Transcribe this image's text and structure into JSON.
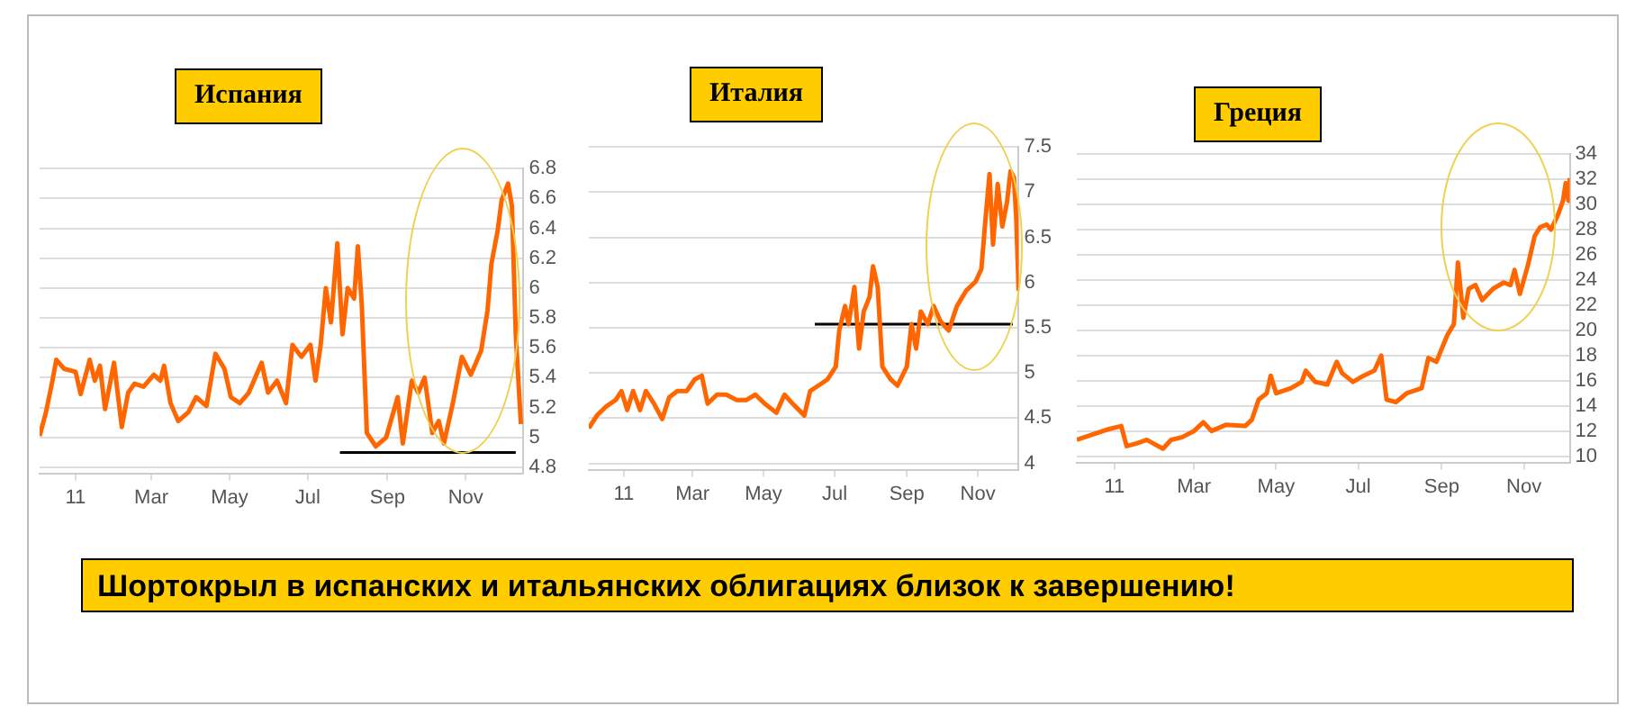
{
  "chart_data": [
    {
      "type": "line",
      "title": "Испания",
      "xlim": [
        "2010-12-04",
        "2011-12-16"
      ],
      "xticks": [
        {
          "value": "2011-01-01",
          "label": "11"
        },
        {
          "value": "2011-03-01",
          "label": "Mar"
        },
        {
          "value": "2011-05-01",
          "label": "May"
        },
        {
          "value": "2011-07-01",
          "label": "Jul"
        },
        {
          "value": "2011-09-01",
          "label": "Sep"
        },
        {
          "value": "2011-11-01",
          "label": "Nov"
        }
      ],
      "ylim": [
        4.76,
        6.8
      ],
      "yticks": [
        4.8,
        5,
        5.2,
        5.4,
        5.6,
        5.8,
        6,
        6.2,
        6.4,
        6.6,
        6.8
      ],
      "grid": "y",
      "series": [
        {
          "color": "#ff6600",
          "x": [
            "2010-12-04",
            "2010-12-09",
            "2010-12-14",
            "2010-12-17",
            "2010-12-23",
            "2011-01-01",
            "2011-01-05",
            "2011-01-12",
            "2011-01-16",
            "2011-01-20",
            "2011-01-24",
            "2011-01-31",
            "2011-02-06",
            "2011-02-11",
            "2011-02-16",
            "2011-02-23",
            "2011-03-03",
            "2011-03-08",
            "2011-03-11",
            "2011-03-16",
            "2011-03-22",
            "2011-03-30",
            "2011-04-05",
            "2011-04-13",
            "2011-04-20",
            "2011-04-27",
            "2011-05-02",
            "2011-05-09",
            "2011-05-16",
            "2011-05-26",
            "2011-05-31",
            "2011-06-07",
            "2011-06-14",
            "2011-06-19",
            "2011-06-26",
            "2011-07-03",
            "2011-07-07",
            "2011-07-11",
            "2011-07-15",
            "2011-07-19",
            "2011-07-24",
            "2011-07-28",
            "2011-08-01",
            "2011-08-06",
            "2011-08-09",
            "2011-08-12",
            "2011-08-16",
            "2011-08-23",
            "2011-08-31",
            "2011-09-09",
            "2011-09-13",
            "2011-09-20",
            "2011-09-25",
            "2011-09-30",
            "2011-10-06",
            "2011-10-11",
            "2011-10-15",
            "2011-10-22",
            "2011-10-29",
            "2011-11-05",
            "2011-11-13",
            "2011-11-18",
            "2011-11-21",
            "2011-11-26",
            "2011-11-29",
            "2011-12-04",
            "2011-12-07",
            "2011-12-10",
            "2011-12-14"
          ],
          "values": [
            5.01,
            5.17,
            5.38,
            5.52,
            5.46,
            5.44,
            5.29,
            5.52,
            5.38,
            5.48,
            5.19,
            5.5,
            5.07,
            5.3,
            5.36,
            5.34,
            5.42,
            5.38,
            5.48,
            5.23,
            5.11,
            5.17,
            5.27,
            5.21,
            5.56,
            5.46,
            5.27,
            5.23,
            5.3,
            5.5,
            5.3,
            5.38,
            5.23,
            5.62,
            5.54,
            5.62,
            5.38,
            5.62,
            6.0,
            5.77,
            6.3,
            5.69,
            6.0,
            5.93,
            6.28,
            5.89,
            5.03,
            4.94,
            5.0,
            5.27,
            4.96,
            5.38,
            5.3,
            5.4,
            5.03,
            5.11,
            4.96,
            5.23,
            5.54,
            5.42,
            5.58,
            5.85,
            6.16,
            6.39,
            6.59,
            6.7,
            6.55,
            5.69,
            5.09
          ]
        },
        {
          "type": "line",
          "color": "#000000",
          "x": [
            "2011-07-26",
            "2011-12-10"
          ],
          "values": [
            4.9,
            4.9
          ]
        }
      ]
    },
    {
      "type": "line",
      "title": "Италия",
      "xlim": [
        "2010-12-02",
        "2011-12-06"
      ],
      "xticks": [
        {
          "value": "2011-01-01",
          "label": "11"
        },
        {
          "value": "2011-03-01",
          "label": "Mar"
        },
        {
          "value": "2011-05-01",
          "label": "May"
        },
        {
          "value": "2011-07-01",
          "label": "Jul"
        },
        {
          "value": "2011-09-01",
          "label": "Sep"
        },
        {
          "value": "2011-11-01",
          "label": "Nov"
        }
      ],
      "ylim": [
        3.93,
        7.5
      ],
      "yticks": [
        4,
        4.5,
        5,
        5.5,
        6,
        6.5,
        7,
        7.5
      ],
      "grid": "y",
      "series": [
        {
          "color": "#ff6600",
          "x": [
            "2010-12-02",
            "2010-12-09",
            "2010-12-17",
            "2010-12-25",
            "2010-12-30",
            "2011-01-04",
            "2011-01-09",
            "2011-01-15",
            "2011-01-20",
            "2011-01-27",
            "2011-02-03",
            "2011-02-09",
            "2011-02-16",
            "2011-02-24",
            "2011-03-03",
            "2011-03-09",
            "2011-03-14",
            "2011-03-22",
            "2011-03-30",
            "2011-04-08",
            "2011-04-16",
            "2011-04-24",
            "2011-05-02",
            "2011-05-12",
            "2011-05-19",
            "2011-05-26",
            "2011-06-05",
            "2011-06-10",
            "2011-06-17",
            "2011-06-25",
            "2011-07-02",
            "2011-07-05",
            "2011-07-10",
            "2011-07-13",
            "2011-07-18",
            "2011-07-22",
            "2011-07-26",
            "2011-07-31",
            "2011-08-03",
            "2011-08-07",
            "2011-08-11",
            "2011-08-18",
            "2011-08-24",
            "2011-09-01",
            "2011-09-05",
            "2011-09-09",
            "2011-09-13",
            "2011-09-19",
            "2011-09-24",
            "2011-09-30",
            "2011-10-07",
            "2011-10-14",
            "2011-10-22",
            "2011-10-30",
            "2011-11-04",
            "2011-11-07",
            "2011-11-11",
            "2011-11-14",
            "2011-11-18",
            "2011-11-22",
            "2011-11-26",
            "2011-11-29",
            "2011-12-02",
            "2011-12-04",
            "2011-12-06"
          ],
          "values": [
            4.39,
            4.53,
            4.63,
            4.7,
            4.8,
            4.59,
            4.8,
            4.59,
            4.8,
            4.66,
            4.49,
            4.73,
            4.8,
            4.8,
            4.93,
            4.97,
            4.66,
            4.76,
            4.76,
            4.7,
            4.7,
            4.76,
            4.66,
            4.56,
            4.76,
            4.66,
            4.53,
            4.8,
            4.86,
            4.93,
            5.07,
            5.47,
            5.74,
            5.54,
            5.95,
            5.27,
            5.68,
            5.84,
            6.18,
            5.95,
            5.07,
            4.93,
            4.86,
            5.07,
            5.54,
            5.27,
            5.68,
            5.54,
            5.74,
            5.57,
            5.47,
            5.74,
            5.91,
            6.01,
            6.15,
            6.62,
            7.2,
            6.42,
            7.09,
            6.62,
            6.89,
            7.23,
            7.16,
            6.69,
            5.91
          ]
        },
        {
          "type": "line",
          "color": "#000000",
          "x": [
            "2011-06-14",
            "2011-12-01"
          ],
          "values": [
            5.54,
            5.54
          ]
        }
      ]
    },
    {
      "type": "line",
      "title": "Греция",
      "xlim": [
        "2010-12-04",
        "2011-12-05"
      ],
      "xticks": [
        {
          "value": "2011-01-01",
          "label": "11"
        },
        {
          "value": "2011-03-01",
          "label": "Mar"
        },
        {
          "value": "2011-05-01",
          "label": "May"
        },
        {
          "value": "2011-07-01",
          "label": "Jul"
        },
        {
          "value": "2011-09-01",
          "label": "Sep"
        },
        {
          "value": "2011-11-01",
          "label": "Nov"
        }
      ],
      "ylim": [
        9.5,
        34
      ],
      "yticks": [
        10,
        12,
        14,
        16,
        18,
        20,
        22,
        24,
        26,
        28,
        30,
        32,
        34
      ],
      "grid": "y",
      "series": [
        {
          "color": "#ff6600",
          "x": [
            "2010-12-04",
            "2010-12-15",
            "2010-12-26",
            "2011-01-06",
            "2011-01-10",
            "2011-01-17",
            "2011-01-25",
            "2011-01-30",
            "2011-02-06",
            "2011-02-12",
            "2011-02-20",
            "2011-03-01",
            "2011-03-08",
            "2011-03-14",
            "2011-03-25",
            "2011-04-08",
            "2011-04-13",
            "2011-04-18",
            "2011-04-24",
            "2011-04-27",
            "2011-05-01",
            "2011-05-12",
            "2011-05-20",
            "2011-05-23",
            "2011-05-30",
            "2011-06-08",
            "2011-06-15",
            "2011-06-19",
            "2011-06-27",
            "2011-07-05",
            "2011-07-13",
            "2011-07-18",
            "2011-07-22",
            "2011-07-29",
            "2011-08-06",
            "2011-08-17",
            "2011-08-22",
            "2011-08-28",
            "2011-09-05",
            "2011-09-10",
            "2011-09-13",
            "2011-09-17",
            "2011-09-21",
            "2011-09-26",
            "2011-10-01",
            "2011-10-09",
            "2011-10-17",
            "2011-10-22",
            "2011-10-25",
            "2011-10-29",
            "2011-11-04",
            "2011-11-09",
            "2011-11-13",
            "2011-11-18",
            "2011-11-21",
            "2011-11-26",
            "2011-11-30",
            "2011-12-02",
            "2011-12-04",
            "2011-12-05"
          ],
          "values": [
            11.3,
            11.7,
            12.1,
            12.4,
            10.8,
            11.0,
            11.3,
            11.0,
            10.6,
            11.3,
            11.5,
            12.0,
            12.7,
            12.0,
            12.5,
            12.4,
            12.9,
            14.5,
            15.0,
            16.4,
            15.0,
            15.4,
            15.9,
            16.8,
            15.9,
            15.7,
            17.5,
            16.6,
            15.9,
            16.4,
            16.8,
            18.0,
            14.5,
            14.3,
            15.0,
            15.4,
            17.8,
            17.5,
            19.6,
            20.5,
            25.4,
            21.0,
            23.3,
            23.6,
            22.4,
            23.3,
            23.8,
            23.6,
            24.8,
            22.9,
            25.2,
            27.5,
            28.2,
            28.4,
            28.0,
            29.1,
            30.3,
            31.7,
            30.3,
            32.1
          ]
        }
      ]
    },
    {
      "type": "other",
      "title": "Шортокрыл в испанских и итальянских облигациях близок к завершению!"
    }
  ]
}
